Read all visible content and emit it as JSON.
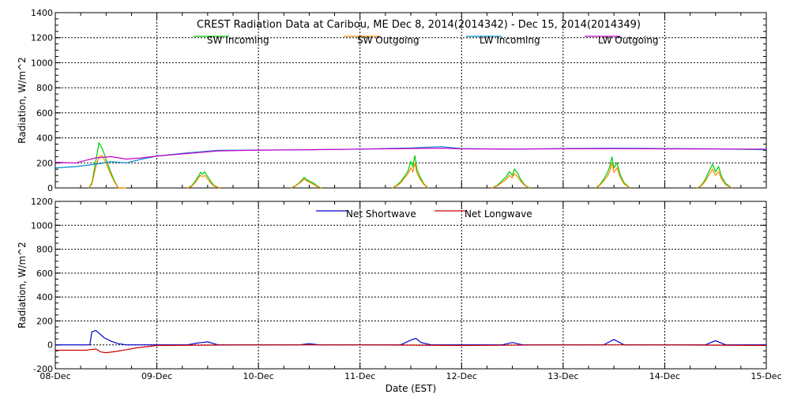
{
  "chart_data": [
    {
      "type": "line",
      "title": "CREST Radiation Data at Caribou, ME   Dec  8, 2014(2014342) - Dec 15, 2014(2014349)",
      "xlabel": "",
      "ylabel": "Radiation, W/m^2",
      "xlim": [
        "08-Dec",
        "15-Dec"
      ],
      "ylim": [
        0,
        1400
      ],
      "yticks": [
        0,
        200,
        400,
        600,
        800,
        1000,
        1200,
        1400
      ],
      "grid": true,
      "legend_position": "top",
      "series": [
        {
          "name": "SW Incoming",
          "color": "#00cc00",
          "x": [
            0.33,
            0.36,
            0.4,
            0.43,
            0.46,
            0.5,
            0.54,
            0.58,
            0.62,
            0.66,
            0.7
          ],
          "values": [
            0,
            40,
            220,
            360,
            320,
            230,
            140,
            60,
            0,
            0,
            0
          ],
          "days": [
            {
              "d": 1,
              "x": [
                0.3,
                0.34,
                0.38,
                0.41,
                0.43,
                0.45,
                0.47,
                0.5,
                0.53,
                0.56,
                0.62
              ],
              "v": [
                0,
                15,
                55,
                95,
                125,
                110,
                130,
                90,
                55,
                20,
                0
              ]
            },
            {
              "d": 2,
              "x": [
                0.32,
                0.36,
                0.4,
                0.43,
                0.45,
                0.47,
                0.5,
                0.54,
                0.58,
                0.62
              ],
              "v": [
                0,
                15,
                40,
                65,
                85,
                70,
                55,
                40,
                15,
                0
              ]
            },
            {
              "d": 3,
              "x": [
                0.32,
                0.36,
                0.4,
                0.44,
                0.47,
                0.5,
                0.52,
                0.54,
                0.56,
                0.59,
                0.63,
                0.67
              ],
              "v": [
                0,
                20,
                50,
                95,
                130,
                210,
                170,
                260,
                150,
                90,
                30,
                0
              ]
            },
            {
              "d": 4,
              "x": [
                0.3,
                0.35,
                0.4,
                0.44,
                0.47,
                0.5,
                0.52,
                0.55,
                0.58,
                0.62,
                0.67
              ],
              "v": [
                0,
                20,
                60,
                90,
                130,
                100,
                150,
                120,
                70,
                25,
                0
              ]
            },
            {
              "d": 5,
              "x": [
                0.32,
                0.36,
                0.4,
                0.44,
                0.46,
                0.48,
                0.5,
                0.53,
                0.56,
                0.6,
                0.66
              ],
              "v": [
                0,
                25,
                70,
                130,
                175,
                250,
                160,
                200,
                110,
                40,
                0
              ]
            },
            {
              "d": 6,
              "x": [
                0.32,
                0.36,
                0.4,
                0.44,
                0.47,
                0.5,
                0.53,
                0.56,
                0.6,
                0.66
              ],
              "v": [
                0,
                20,
                70,
                140,
                190,
                130,
                170,
                90,
                35,
                0
              ]
            }
          ]
        },
        {
          "name": "SW Outgoing",
          "color": "#ff8800",
          "x": [
            0.33,
            0.36,
            0.4,
            0.43,
            0.46,
            0.5,
            0.54,
            0.58,
            0.62,
            0.66,
            0.7
          ],
          "values": [
            0,
            30,
            170,
            250,
            260,
            200,
            120,
            50,
            0,
            0,
            0
          ],
          "days": [
            {
              "d": 1,
              "x": [
                0.3,
                0.34,
                0.38,
                0.41,
                0.43,
                0.45,
                0.47,
                0.5,
                0.53,
                0.56,
                0.62
              ],
              "v": [
                0,
                10,
                45,
                80,
                100,
                90,
                100,
                70,
                40,
                15,
                0
              ]
            },
            {
              "d": 2,
              "x": [
                0.32,
                0.36,
                0.4,
                0.43,
                0.45,
                0.47,
                0.5,
                0.54,
                0.58,
                0.62
              ],
              "v": [
                0,
                12,
                35,
                55,
                70,
                60,
                45,
                30,
                10,
                0
              ]
            },
            {
              "d": 3,
              "x": [
                0.32,
                0.36,
                0.4,
                0.44,
                0.47,
                0.5,
                0.52,
                0.54,
                0.56,
                0.59,
                0.63,
                0.67
              ],
              "v": [
                0,
                15,
                40,
                80,
                110,
                160,
                130,
                200,
                120,
                70,
                25,
                0
              ]
            },
            {
              "d": 4,
              "x": [
                0.3,
                0.35,
                0.4,
                0.44,
                0.47,
                0.5,
                0.52,
                0.55,
                0.58,
                0.62,
                0.67
              ],
              "v": [
                0,
                15,
                45,
                70,
                100,
                80,
                115,
                90,
                55,
                20,
                0
              ]
            },
            {
              "d": 5,
              "x": [
                0.32,
                0.36,
                0.4,
                0.44,
                0.46,
                0.48,
                0.5,
                0.53,
                0.56,
                0.6,
                0.66
              ],
              "v": [
                0,
                20,
                55,
                100,
                140,
                200,
                125,
                160,
                85,
                30,
                0
              ]
            },
            {
              "d": 6,
              "x": [
                0.32,
                0.36,
                0.4,
                0.44,
                0.47,
                0.5,
                0.53,
                0.56,
                0.6,
                0.66
              ],
              "v": [
                0,
                15,
                55,
                110,
                150,
                100,
                130,
                70,
                25,
                0
              ]
            }
          ]
        },
        {
          "name": "LW Incoming",
          "color": "#0088cc",
          "x": [
            0.0,
            0.2,
            0.4,
            0.55,
            0.7,
            0.85,
            1.0,
            1.3,
            1.6,
            2.0,
            2.5,
            3.0,
            3.5,
            3.8,
            4.0,
            4.5,
            5.0,
            5.5,
            6.0,
            6.5,
            7.0
          ],
          "values": [
            160,
            170,
            190,
            210,
            200,
            230,
            255,
            280,
            300,
            302,
            305,
            310,
            320,
            330,
            315,
            310,
            315,
            318,
            315,
            312,
            305
          ]
        },
        {
          "name": "LW Outgoing",
          "color": "#cc00cc",
          "x": [
            0.0,
            0.2,
            0.4,
            0.55,
            0.7,
            0.85,
            1.0,
            1.3,
            1.6,
            2.0,
            2.5,
            3.0,
            3.5,
            3.8,
            4.0,
            4.5,
            5.0,
            5.5,
            6.0,
            6.5,
            7.0
          ],
          "values": [
            205,
            200,
            240,
            250,
            230,
            240,
            255,
            275,
            295,
            302,
            305,
            310,
            315,
            318,
            312,
            310,
            313,
            314,
            312,
            311,
            310
          ]
        }
      ]
    },
    {
      "type": "line",
      "title": "",
      "xlabel": "Date (EST)",
      "ylabel": "Radiation, W/m^2",
      "categories": [
        "08-Dec",
        "09-Dec",
        "10-Dec",
        "11-Dec",
        "12-Dec",
        "13-Dec",
        "14-Dec",
        "15-Dec"
      ],
      "ylim": [
        -200,
        1200
      ],
      "yticks": [
        -200,
        0,
        200,
        400,
        600,
        800,
        1000,
        1200
      ],
      "grid": true,
      "legend_position": "top",
      "series": [
        {
          "name": "Net Shortwave",
          "color": "#0000cc",
          "x": [
            0.0,
            0.34,
            0.36,
            0.4,
            0.44,
            0.48,
            0.55,
            0.62,
            0.7,
            0.8,
            1.0,
            1.3,
            1.4,
            1.5,
            1.6,
            2.4,
            2.5,
            2.6,
            3.4,
            3.5,
            3.55,
            3.6,
            3.7,
            4.4,
            4.5,
            4.6,
            5.4,
            5.5,
            5.6,
            6.4,
            6.5,
            6.6,
            7.0
          ],
          "values": [
            0,
            0,
            110,
            120,
            90,
            60,
            30,
            10,
            0,
            0,
            0,
            0,
            15,
            25,
            0,
            0,
            10,
            0,
            0,
            40,
            55,
            20,
            0,
            0,
            20,
            0,
            0,
            45,
            0,
            0,
            35,
            0,
            0
          ]
        },
        {
          "name": "Net Longwave",
          "color": "#cc0000",
          "x": [
            0.0,
            0.3,
            0.34,
            0.4,
            0.45,
            0.5,
            0.6,
            0.7,
            0.8,
            0.9,
            1.0,
            2.0,
            3.0,
            4.0,
            5.0,
            6.0,
            7.0
          ],
          "values": [
            -45,
            -45,
            -40,
            -35,
            -60,
            -65,
            -55,
            -40,
            -25,
            -15,
            -5,
            0,
            0,
            -5,
            0,
            0,
            -5
          ]
        }
      ]
    }
  ]
}
